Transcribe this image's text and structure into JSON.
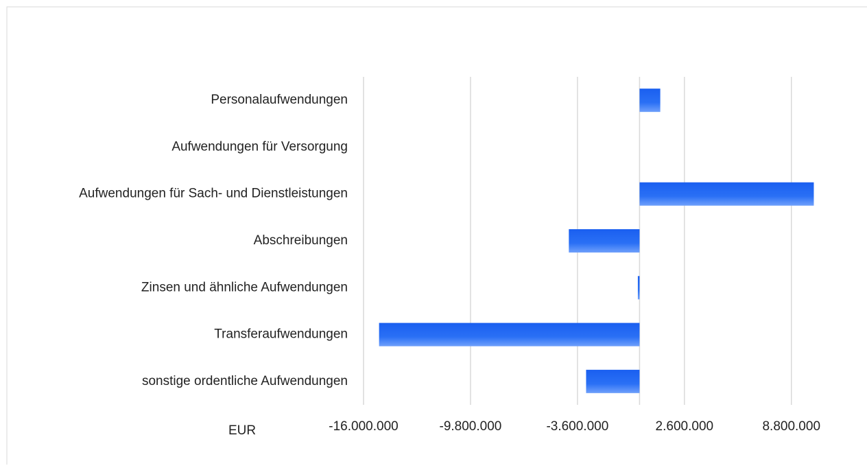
{
  "chart_data": {
    "type": "bar",
    "orientation": "horizontal",
    "x_label": "EUR",
    "categories": [
      "Personalaufwendungen",
      "Aufwendungen für Versorgung",
      "Aufwendungen für Sach- und Dienstleistungen",
      "Abschreibungen",
      "Zinsen und ähnliche Aufwendungen",
      "Transferaufwendungen",
      "sonstige ordentliche Aufwendungen"
    ],
    "values": [
      1200000,
      0,
      10100000,
      -4100000,
      -100000,
      -15100000,
      -3100000
    ],
    "color": "#1a63f0",
    "xlim": [
      -16000000,
      10400000
    ],
    "xticks": [
      {
        "value": -16000000,
        "label": "-16.000.000"
      },
      {
        "value": -9800000,
        "label": "-9.800.000"
      },
      {
        "value": -3600000,
        "label": "-3.600.000"
      },
      {
        "value": 2600000,
        "label": "2.600.000"
      },
      {
        "value": 8800000,
        "label": "8.800.000"
      }
    ],
    "grid": true
  }
}
